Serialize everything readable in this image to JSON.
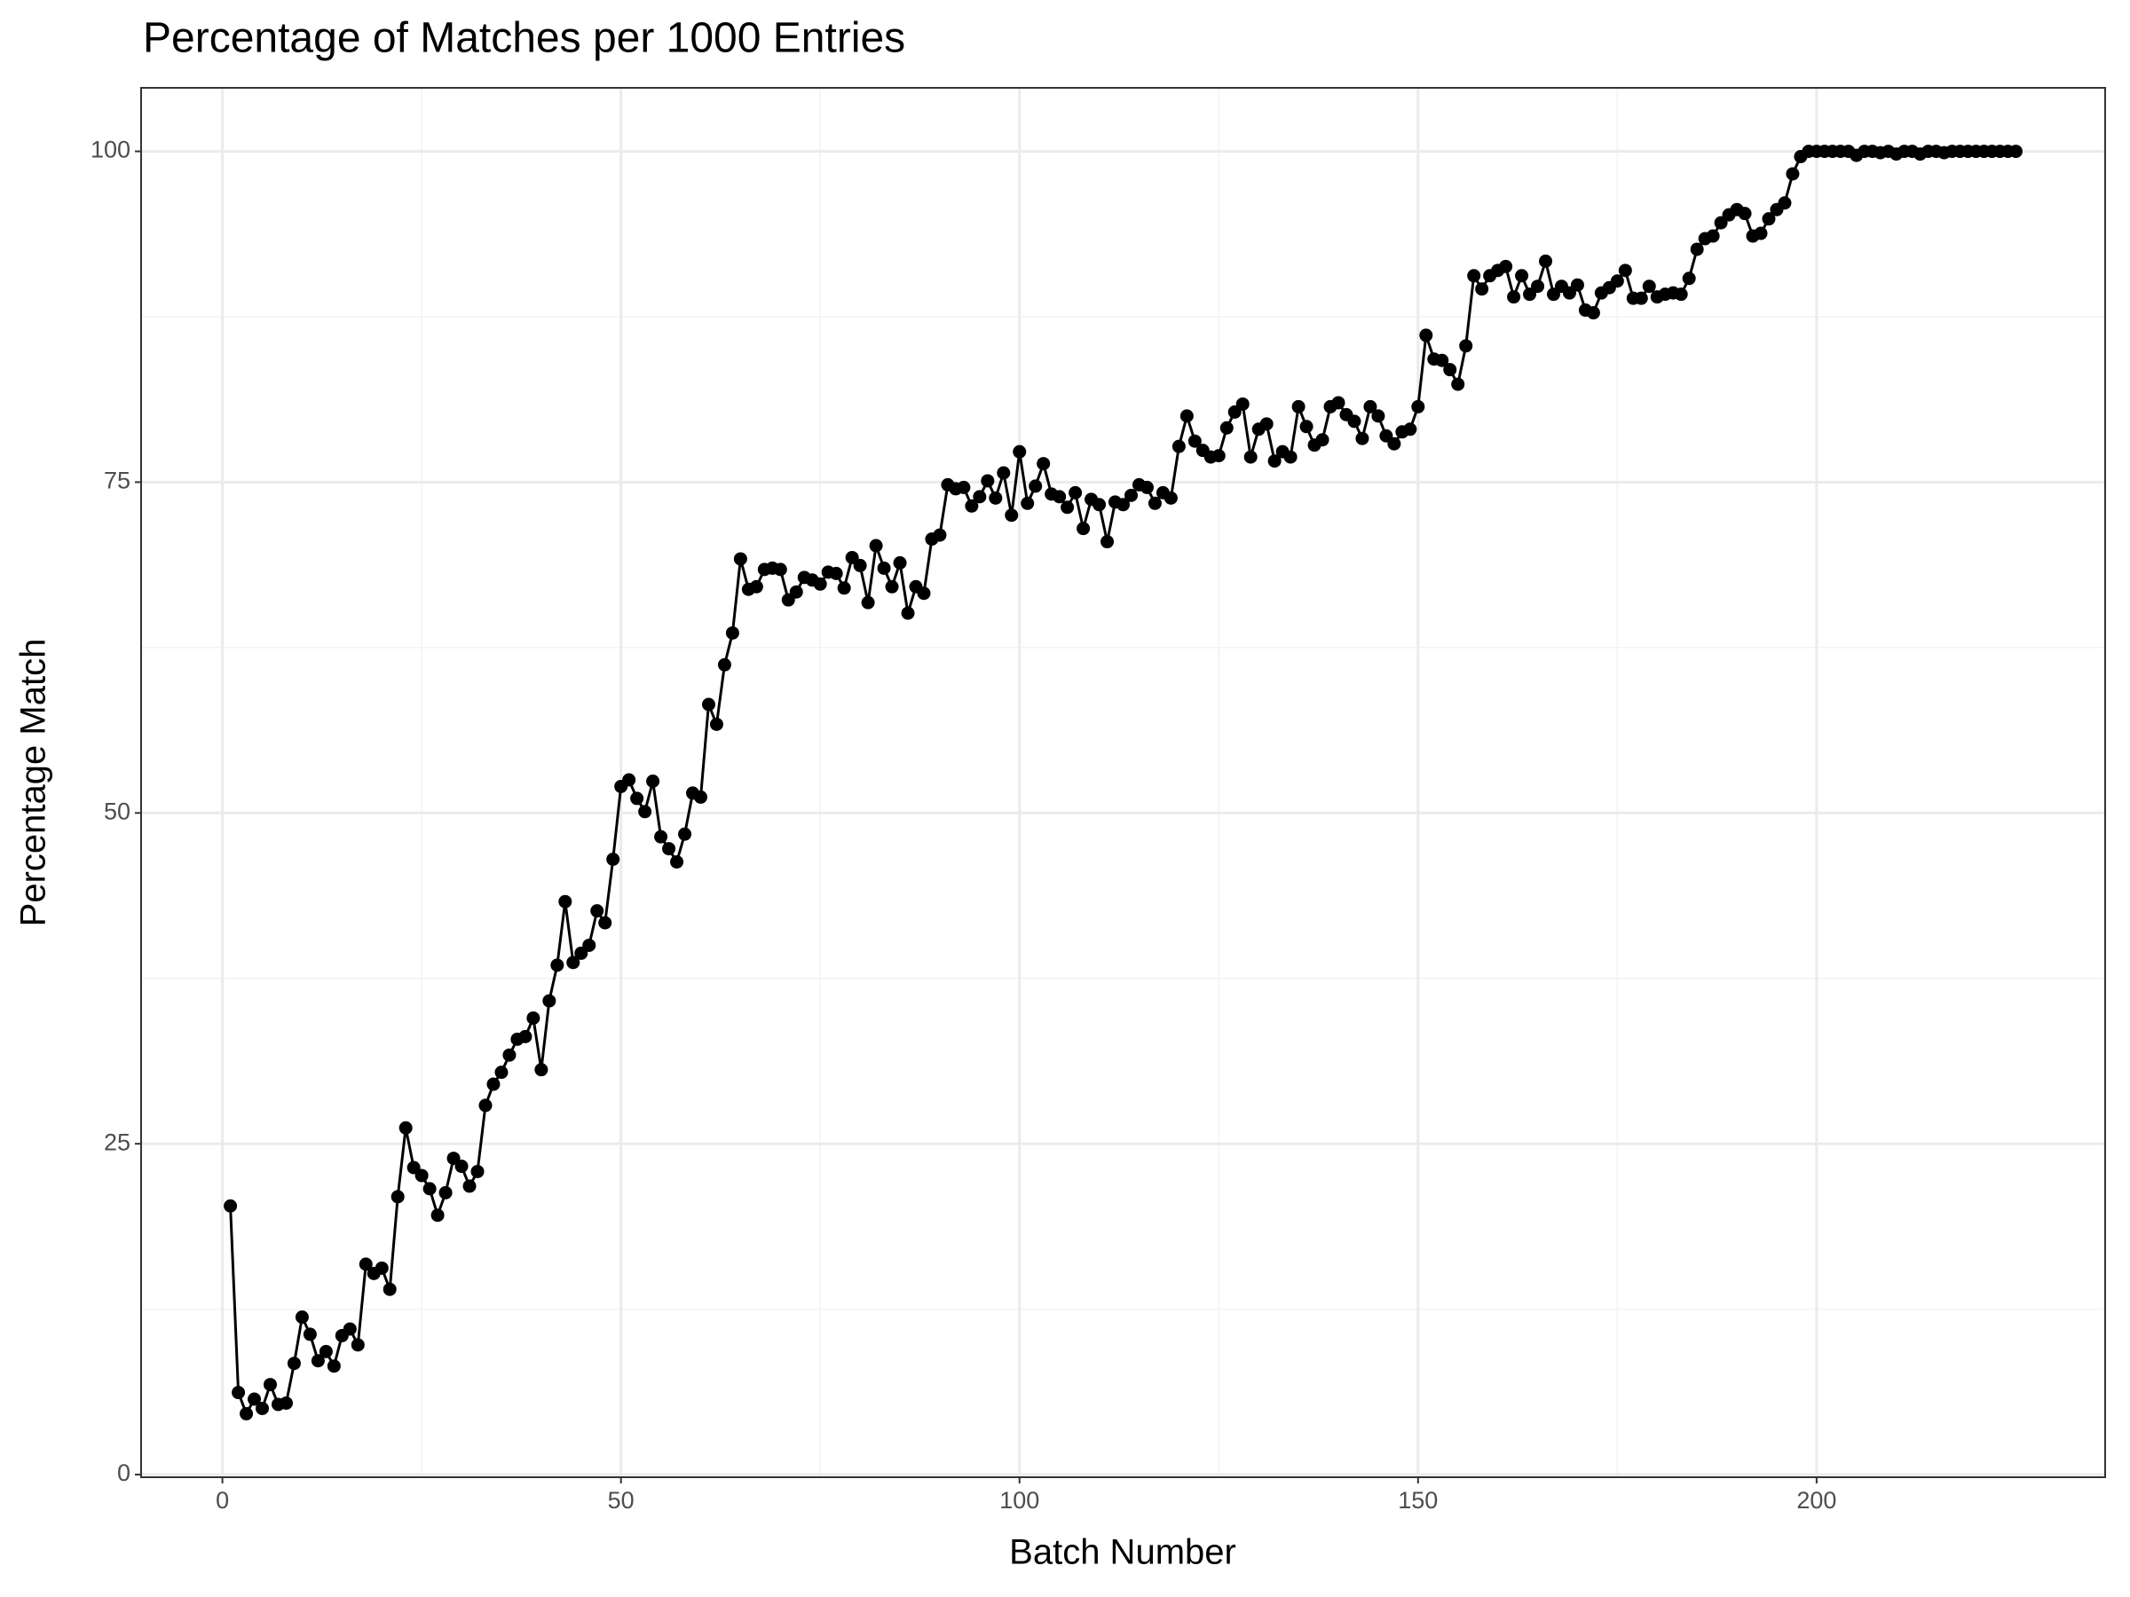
{
  "chart_data": {
    "type": "line",
    "title": "Percentage of Matches per 1000 Entries",
    "x_label": "Batch Number",
    "y_label": "Percentage Match",
    "x": [
      1,
      2,
      3,
      4,
      5,
      6,
      7,
      8,
      9,
      10,
      11,
      12,
      13,
      14,
      15,
      16,
      17,
      18,
      19,
      20,
      21,
      22,
      23,
      24,
      25,
      26,
      27,
      28,
      29,
      30,
      31,
      32,
      33,
      34,
      35,
      36,
      37,
      38,
      39,
      40,
      41,
      42,
      43,
      44,
      45,
      46,
      47,
      48,
      49,
      50,
      51,
      52,
      53,
      54,
      55,
      56,
      57,
      58,
      59,
      60,
      61,
      62,
      63,
      64,
      65,
      66,
      67,
      68,
      69,
      70,
      71,
      72,
      73,
      74,
      75,
      76,
      77,
      78,
      79,
      80,
      81,
      82,
      83,
      84,
      85,
      86,
      87,
      88,
      89,
      90,
      91,
      92,
      93,
      94,
      95,
      96,
      97,
      98,
      99,
      100,
      101,
      102,
      103,
      104,
      105,
      106,
      107,
      108,
      109,
      110,
      111,
      112,
      113,
      114,
      115,
      116,
      117,
      118,
      119,
      120,
      121,
      122,
      123,
      124,
      125,
      126,
      127,
      128,
      129,
      130,
      131,
      132,
      133,
      134,
      135,
      136,
      137,
      138,
      139,
      140,
      141,
      142,
      143,
      144,
      145,
      146,
      147,
      148,
      149,
      150,
      151,
      152,
      153,
      154,
      155,
      156,
      157,
      158,
      159,
      160,
      161,
      162,
      163,
      164,
      165,
      166,
      167,
      168,
      169,
      170,
      171,
      172,
      173,
      174,
      175,
      176,
      177,
      178,
      179,
      180,
      181,
      182,
      183,
      184,
      185,
      186,
      187,
      188,
      189,
      190,
      191,
      192,
      193,
      194,
      195,
      196,
      197,
      198,
      199,
      200,
      201,
      202,
      203,
      204,
      205,
      206,
      207,
      208,
      209,
      210,
      211,
      212,
      213,
      214,
      215,
      216,
      217,
      218,
      219,
      220,
      221,
      222,
      223,
      224,
      225
    ],
    "series": [
      {
        "color": "#000000",
        "values": [
          20.3,
          6.2,
          4.6,
          5.7,
          5.0,
          6.8,
          5.3,
          5.4,
          8.4,
          11.9,
          10.6,
          8.6,
          9.3,
          8.2,
          10.5,
          11.0,
          9.8,
          15.9,
          15.2,
          15.6,
          14.0,
          21.0,
          26.2,
          23.2,
          22.6,
          21.6,
          19.6,
          21.3,
          23.9,
          23.3,
          21.8,
          22.9,
          27.9,
          29.5,
          30.4,
          31.7,
          32.9,
          33.1,
          34.5,
          30.6,
          35.8,
          38.5,
          43.3,
          38.7,
          39.4,
          40.0,
          42.6,
          41.7,
          46.5,
          52.0,
          52.5,
          51.1,
          50.1,
          52.4,
          48.2,
          47.3,
          46.3,
          48.4,
          51.5,
          51.2,
          58.2,
          56.7,
          61.2,
          63.6,
          69.2,
          66.9,
          67.1,
          68.4,
          68.5,
          68.4,
          66.1,
          66.7,
          67.8,
          67.6,
          67.3,
          68.2,
          68.1,
          67.0,
          69.3,
          68.7,
          65.9,
          70.2,
          68.5,
          67.1,
          68.9,
          65.1,
          67.1,
          66.6,
          70.7,
          71.0,
          74.8,
          74.5,
          74.6,
          73.2,
          73.9,
          75.1,
          73.8,
          75.7,
          72.5,
          77.3,
          73.4,
          74.7,
          76.4,
          74.1,
          73.9,
          73.1,
          74.2,
          71.5,
          73.7,
          73.3,
          70.5,
          73.5,
          73.3,
          74.0,
          74.8,
          74.6,
          73.4,
          74.2,
          73.8,
          77.7,
          80.0,
          78.1,
          77.4,
          76.9,
          77.0,
          79.1,
          80.3,
          80.9,
          76.9,
          79.0,
          79.4,
          76.6,
          77.3,
          76.9,
          80.7,
          79.2,
          77.8,
          78.2,
          80.7,
          81.0,
          80.1,
          79.6,
          78.3,
          80.7,
          80.0,
          78.5,
          77.9,
          78.8,
          79.0,
          80.7,
          86.1,
          84.3,
          84.2,
          83.5,
          82.4,
          85.3,
          90.6,
          89.6,
          90.6,
          91.0,
          91.3,
          89.0,
          90.6,
          89.2,
          89.8,
          91.7,
          89.2,
          89.8,
          89.3,
          89.9,
          88.0,
          87.8,
          89.3,
          89.7,
          90.2,
          91.0,
          88.9,
          88.9,
          89.8,
          89.0,
          89.2,
          89.3,
          89.2,
          90.4,
          92.6,
          93.4,
          93.6,
          94.6,
          95.2,
          95.6,
          95.3,
          93.6,
          93.8,
          94.9,
          95.6,
          96.1,
          98.3,
          99.6,
          100,
          100,
          100,
          100,
          100,
          100,
          99.7,
          100,
          100,
          99.9,
          100,
          99.8,
          100,
          100,
          99.8,
          100,
          100,
          99.9,
          100,
          100,
          100,
          100,
          100,
          100,
          100,
          100,
          100
        ]
      }
    ],
    "xlim": [
      -10.2,
      236.2
    ],
    "ylim": [
      -0.2,
      104.8
    ],
    "xticks": [
      0,
      50,
      100,
      150,
      200
    ],
    "yticks": [
      0,
      25,
      50,
      75,
      100
    ],
    "grid": true,
    "minor_grid": true
  }
}
